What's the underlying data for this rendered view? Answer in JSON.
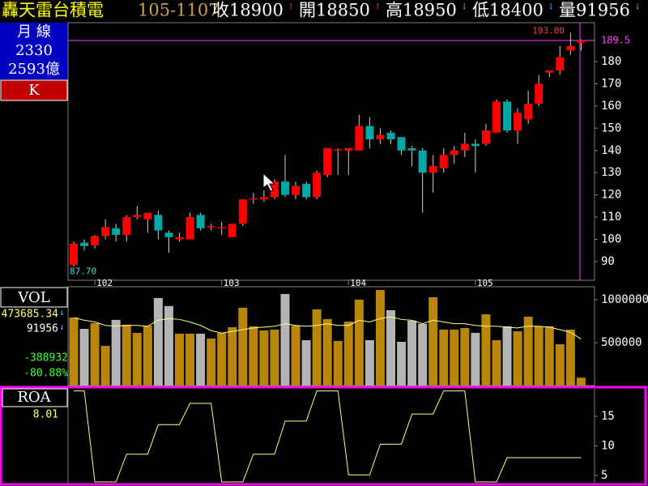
{
  "header": {
    "stock": "轟天雷台積電",
    "date": "105-1107",
    "quotes": [
      {
        "label": "收18900",
        "arrow": "↑",
        "color": "#ff4040"
      },
      {
        "label": "開18850",
        "arrow": "↑",
        "color": "#ff4040"
      },
      {
        "label": "高18950",
        "arrow": "↓",
        "color": "#40c0ff"
      },
      {
        "label": "低18400",
        "arrow": "↓",
        "color": "#40c0ff"
      },
      {
        "label": "量91956",
        "arrow": "↓",
        "color": "#40c0ff"
      }
    ]
  },
  "side": {
    "period": "月  線",
    "code": "2330",
    "cap": "2593億",
    "kind": "K",
    "vol_title": "VOL",
    "vol_ma": "473685.34",
    "vol_ma_arrow": "↓",
    "vol_now": "91956",
    "vol_now_arrow": "↓",
    "vol_diff": "-388932",
    "vol_pct": "-80.88%",
    "roa_title": "ROA",
    "roa_now": "8.01"
  },
  "chart_data": [
    {
      "type": "candlestick",
      "up_color": "#ff0000",
      "down_color": "#00a8a8",
      "ylim": [
        81.6,
        197.5
      ],
      "yticks": [
        90,
        100,
        110,
        120,
        130,
        140,
        150,
        160,
        170,
        180
      ],
      "current": {
        "value": 189.5,
        "label": "189.5",
        "color": "#ff40ff"
      },
      "high_label": {
        "value": 193,
        "label": "193.00"
      },
      "low_label": {
        "value": 87.7,
        "label": "87.70"
      },
      "x_labels": [
        {
          "index": 2,
          "label": "102"
        },
        {
          "index": 14,
          "label": "103"
        },
        {
          "index": 26,
          "label": "104"
        },
        {
          "index": 38,
          "label": "105"
        }
      ],
      "open": [
        88.5,
        98.5,
        97.3,
        101.5,
        105,
        102,
        110,
        109,
        111,
        103,
        100,
        100,
        111,
        105.5,
        105,
        101,
        107,
        118,
        118,
        119,
        126,
        120,
        125,
        119,
        129,
        140,
        140,
        140,
        151,
        145,
        148,
        146,
        141,
        140,
        130,
        132,
        138,
        140,
        143,
        143,
        148,
        162,
        149,
        154,
        161,
        175,
        176,
        185,
        188.5
      ],
      "high": [
        99,
        100,
        102,
        109,
        107,
        111,
        115,
        112,
        113,
        104,
        103,
        112,
        112,
        107,
        108,
        107,
        118,
        121,
        122,
        127,
        138,
        126,
        126,
        131,
        141,
        141,
        141,
        156,
        155,
        150,
        149,
        146,
        142,
        141,
        138,
        141,
        142,
        148,
        145,
        152,
        163,
        163,
        159,
        167,
        174,
        176,
        187,
        193,
        190
      ],
      "low": [
        87.7,
        95,
        96,
        100,
        99,
        99,
        109,
        103,
        100,
        94,
        99,
        100,
        104,
        104,
        102,
        101,
        106,
        116,
        117,
        118,
        119,
        118,
        118,
        118,
        128,
        129,
        129,
        140,
        141,
        143,
        143,
        138,
        133,
        112,
        121,
        130,
        134,
        137,
        130,
        142,
        148,
        148,
        143,
        152,
        160,
        173,
        174,
        183,
        185
      ],
      "close": [
        98,
        97,
        101.5,
        105.5,
        102,
        110,
        111,
        112,
        104,
        101,
        101,
        110,
        105,
        106,
        105.5,
        107,
        118,
        118.5,
        119,
        126,
        120,
        124,
        119,
        130,
        141,
        140.5,
        141,
        151,
        145,
        147,
        145,
        140,
        140,
        130,
        133,
        138,
        140,
        143,
        142,
        149,
        162,
        149,
        157,
        161,
        170,
        176,
        182,
        187,
        189.5
      ]
    },
    {
      "type": "bar",
      "ylim": [
        0,
        1150000
      ],
      "yticks": [
        {
          "value": 1000000,
          "label": "1000000"
        },
        {
          "value": 500000,
          "label": "500000"
        }
      ],
      "up_color": "#b8860b",
      "down_color": "#b4b4b4",
      "ma_color": "#ffff80",
      "values": [
        792000,
        660000,
        726000,
        462000,
        764000,
        708000,
        613000,
        698000,
        1019000,
        925000,
        604000,
        604000,
        604000,
        547000,
        613000,
        679000,
        906000,
        689000,
        642000,
        651000,
        1066000,
        698000,
        528000,
        887000,
        774000,
        519000,
        745000,
        1000000,
        528000,
        1113000,
        877000,
        509000,
        755000,
        717000,
        1028000,
        651000,
        651000,
        670000,
        613000,
        830000,
        528000,
        689000,
        632000,
        802000,
        689000,
        689000,
        481000,
        651000,
        91956
      ],
      "ma": [
        790000,
        760000,
        740000,
        700000,
        690000,
        700000,
        700000,
        690000,
        760000,
        780000,
        770000,
        740000,
        700000,
        640000,
        610000,
        630000,
        650000,
        670000,
        680000,
        690000,
        720000,
        700000,
        690000,
        700000,
        720000,
        700000,
        700000,
        760000,
        740000,
        780000,
        800000,
        770000,
        760000,
        720000,
        760000,
        740000,
        720000,
        720000,
        700000,
        690000,
        690000,
        680000,
        670000,
        690000,
        690000,
        680000,
        650000,
        620000,
        540000
      ]
    },
    {
      "type": "line",
      "ylim": [
        3.63,
        19.66
      ],
      "yticks": [
        15,
        10,
        5
      ],
      "color": "#ffff80",
      "values": [
        19.3,
        19.3,
        3.9,
        3.9,
        3.9,
        8.6,
        8.6,
        8.6,
        13.6,
        13.6,
        13.6,
        17.2,
        17.2,
        17.2,
        3.9,
        3.9,
        3.9,
        8.6,
        8.6,
        8.6,
        14.2,
        14.2,
        14.2,
        19.3,
        19.3,
        19.3,
        5.1,
        5.1,
        5.1,
        10.3,
        10.3,
        10.3,
        15.4,
        15.4,
        15.4,
        19.3,
        19.3,
        19.3,
        3.9,
        3.9,
        3.9,
        8.01,
        8.01,
        8.01,
        8.01,
        8.01,
        8.01,
        8.01,
        8.01
      ]
    }
  ]
}
